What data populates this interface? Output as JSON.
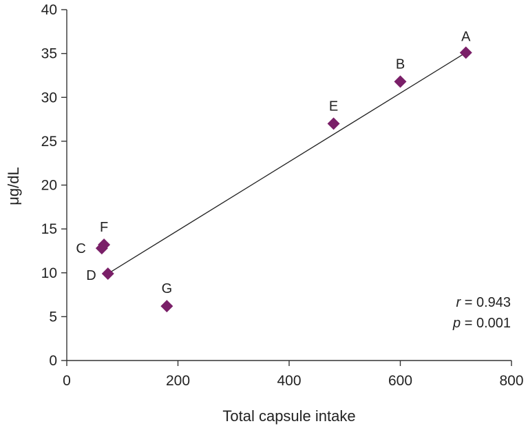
{
  "chart_data": {
    "type": "scatter",
    "xlabel": "Total capsule intake",
    "ylabel": "μg/dL",
    "xlim": [
      0,
      800
    ],
    "ylim": [
      0,
      40
    ],
    "x_ticks": [
      0,
      200,
      400,
      600,
      800
    ],
    "y_ticks": [
      0,
      5,
      10,
      15,
      20,
      25,
      30,
      35,
      40
    ],
    "grid": false,
    "point_color": "#7a1f68",
    "points": [
      {
        "label": "A",
        "x": 718,
        "y": 35.1
      },
      {
        "label": "B",
        "x": 600,
        "y": 31.8
      },
      {
        "label": "E",
        "x": 480,
        "y": 27.0
      },
      {
        "label": "F",
        "x": 67,
        "y": 13.2
      },
      {
        "label": "C",
        "x": 63,
        "y": 12.8
      },
      {
        "label": "D",
        "x": 74,
        "y": 9.9
      },
      {
        "label": "G",
        "x": 180,
        "y": 6.2
      }
    ],
    "fit_line": {
      "x_start": 74,
      "y_start": 9.9,
      "x_end": 718,
      "y_end": 35.1
    },
    "stats": {
      "r_symbol": "r",
      "r_text": " = 0.943",
      "p_symbol": "p",
      "p_text": " = 0.001"
    }
  }
}
